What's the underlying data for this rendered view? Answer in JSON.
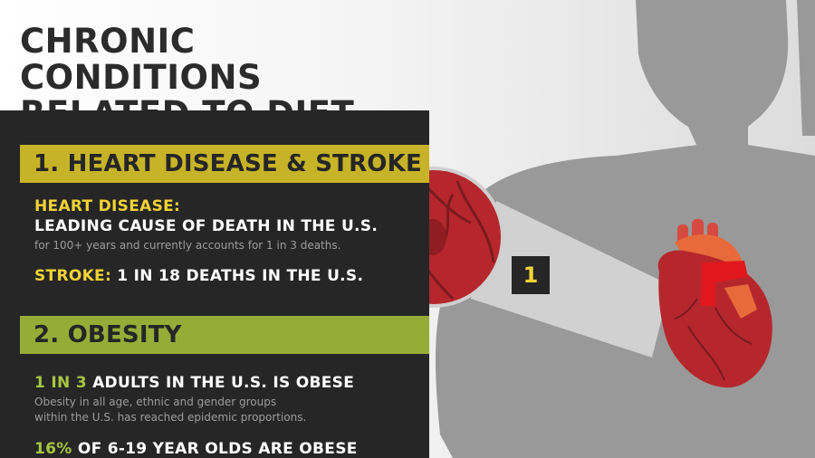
{
  "title": "CHRONIC CONDITIONS RELATED TO DIET",
  "sections": {
    "heart": {
      "heading": "1. HEART DISEASE & STROKE",
      "heart_disease_label": "HEART DISEASE:",
      "heart_disease_fact": "LEADING CAUSE OF DEATH IN THE U.S.",
      "heart_disease_detail": "for 100+ years and currently accounts for 1 in 3 deaths.",
      "stroke_label": "STROKE:",
      "stroke_fact": "1 IN 18 DEATHS IN THE U.S."
    },
    "obesity": {
      "heading": "2. OBESITY",
      "adults_highlight": "1 IN 3",
      "adults_fact": "ADULTS IN THE U.S. IS OBESE",
      "detail_line1": "Obesity in all age, ethnic and gender groups",
      "detail_line2": "within the U.S. has reached epidemic proportions.",
      "youth_highlight": "16%",
      "youth_fact": "OF 6-19 YEAR OLDS ARE OBESE"
    }
  },
  "callout_number": "1",
  "colors": {
    "panel": "#262626",
    "band_yellow": "#c7b327",
    "band_green": "#97ac37",
    "highlight_yellow": "#f1d335",
    "highlight_green": "#a8c640",
    "silhouette": "#999999",
    "heart_red": "#b5272c"
  },
  "icons": [
    "human-silhouette-icon",
    "heart-icon",
    "heart-magnifier-icon"
  ]
}
